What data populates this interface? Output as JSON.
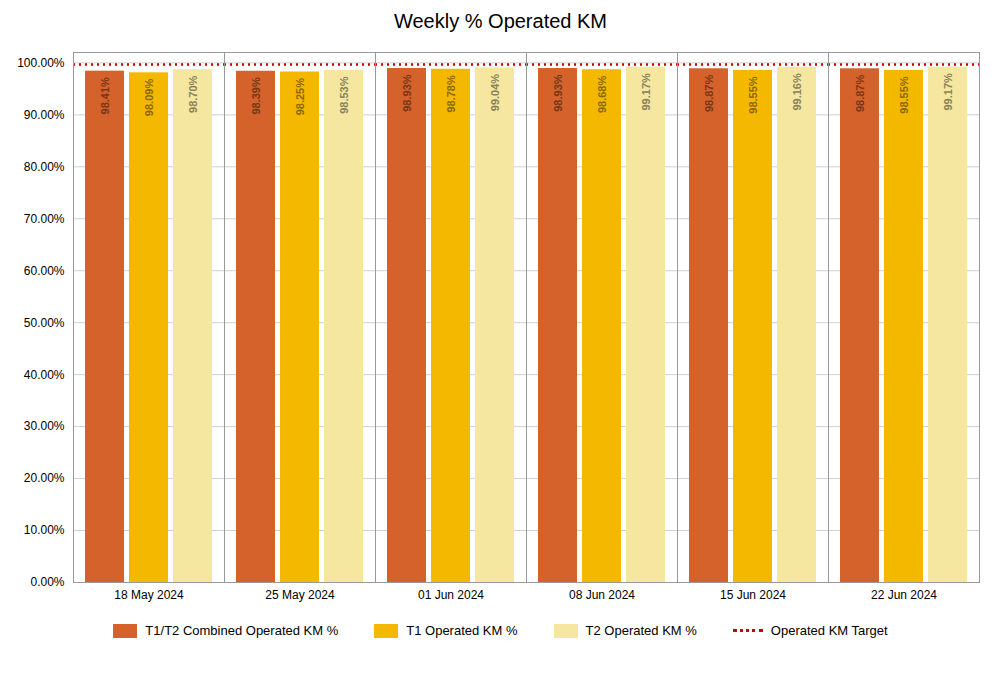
{
  "chart_data": {
    "type": "bar",
    "title": "Weekly % Operated KM",
    "categories": [
      "18 May 2024",
      "25 May 2024",
      "01 Jun 2024",
      "08 Jun 2024",
      "15 Jun 2024",
      "22 Jun 2024"
    ],
    "series": [
      {
        "name": "T1/T2 Combined Operated KM %",
        "color": "#D4622A",
        "values": [
          98.41,
          98.39,
          98.93,
          98.93,
          98.87,
          98.87
        ],
        "value_labels": [
          "98.41%",
          "98.39%",
          "98.93%",
          "98.93%",
          "98.87%",
          "98.87%"
        ]
      },
      {
        "name": "T1 Operated KM %",
        "color": "#F5B800",
        "values": [
          98.09,
          98.25,
          98.78,
          98.68,
          98.55,
          98.55
        ],
        "value_labels": [
          "98.09%",
          "98.25%",
          "98.78%",
          "98.68%",
          "98.55%",
          "98.55%"
        ]
      },
      {
        "name": "T2 Operated KM %",
        "color": "#F5E6A0",
        "values": [
          98.7,
          98.53,
          99.04,
          99.17,
          99.16,
          99.17
        ],
        "value_labels": [
          "98.70%",
          "98.53%",
          "99.04%",
          "99.17%",
          "99.16%",
          "99.17%"
        ]
      }
    ],
    "reference_lines": [
      {
        "name": "Operated KM Target",
        "value": 99.7,
        "color": "#CC0000",
        "line_style": "dotted"
      }
    ],
    "ylim": [
      0,
      102
    ],
    "yticks": [
      {
        "value": 0,
        "label": "0.00%"
      },
      {
        "value": 10,
        "label": "10.00%"
      },
      {
        "value": 20,
        "label": "20.00%"
      },
      {
        "value": 30,
        "label": "30.00%"
      },
      {
        "value": 40,
        "label": "40.00%"
      },
      {
        "value": 50,
        "label": "50.00%"
      },
      {
        "value": 60,
        "label": "60.00%"
      },
      {
        "value": 70,
        "label": "70.00%"
      },
      {
        "value": 80,
        "label": "80.00%"
      },
      {
        "value": 90,
        "label": "90.00%"
      },
      {
        "value": 100,
        "label": "100.00%"
      }
    ],
    "grid": true,
    "legend": "bottom",
    "data_labels": true
  }
}
